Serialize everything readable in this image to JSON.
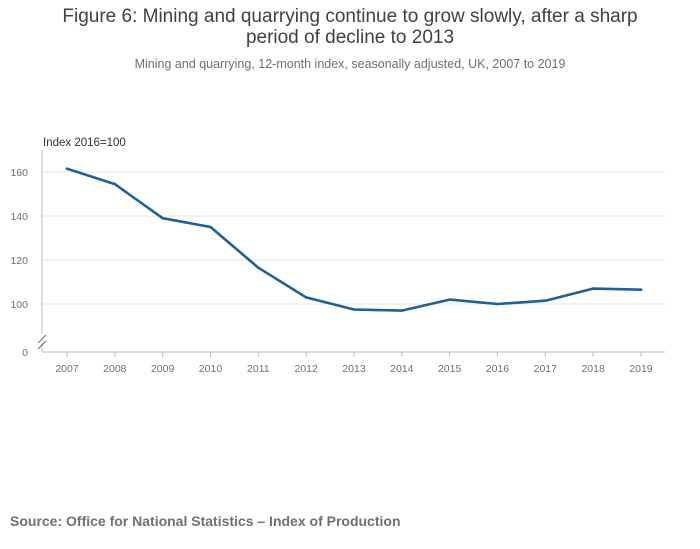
{
  "page": {
    "title": "Figure 6: Mining and quarrying continue to grow slowly, after a sharp period of decline to 2013",
    "subtitle": "Mining and quarrying, 12-month index, seasonally adjusted, UK, 2007 to 2019",
    "source": "Source: Office for National Statistics – Index of Production"
  },
  "chart_data": {
    "type": "line",
    "title": "Figure 6: Mining and quarrying continue to grow slowly, after a sharp period of decline to 2013",
    "subtitle": "Mining and quarrying, 12-month index, seasonally adjusted, UK, 2007 to 2019",
    "xlabel": "",
    "ylabel": "Index 2016=100",
    "categories": [
      "2007",
      "2008",
      "2009",
      "2010",
      "2011",
      "2012",
      "2013",
      "2014",
      "2015",
      "2016",
      "2017",
      "2018",
      "2019"
    ],
    "series": [
      {
        "name": "Mining and quarrying",
        "color": "#206095",
        "values": [
          161.5,
          154.5,
          139,
          135,
          116.5,
          103,
          97.5,
          97,
          102,
          100,
          101.5,
          107,
          106.5
        ]
      }
    ],
    "yticks": [
      0,
      100,
      120,
      140,
      160
    ],
    "ylim": [
      0,
      170
    ],
    "axis_break": true,
    "grid": true
  }
}
